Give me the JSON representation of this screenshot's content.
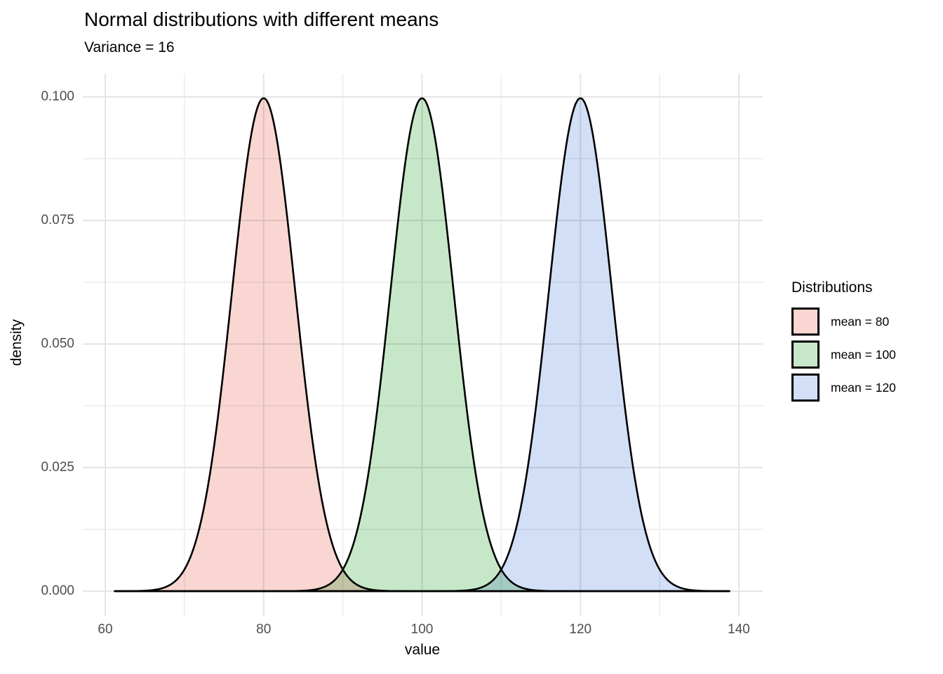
{
  "chart_data": {
    "type": "area",
    "title": "Normal distributions with different means",
    "subtitle": "Variance = 16",
    "xlabel": "value",
    "ylabel": "density",
    "legend_title": "Distributions",
    "legend_position": "right",
    "grid": true,
    "variance": 16,
    "sd": 4,
    "peak_density": 0.0997,
    "curve_x_range": [
      61.2,
      138.8
    ],
    "xlim": [
      57.2,
      143.0
    ],
    "ylim": [
      -0.005,
      0.1047
    ],
    "x_ticks": [
      {
        "value": 60,
        "label": "60"
      },
      {
        "value": 80,
        "label": "80"
      },
      {
        "value": 100,
        "label": "100"
      },
      {
        "value": 120,
        "label": "120"
      },
      {
        "value": 140,
        "label": "140"
      }
    ],
    "x_minor_ticks": [
      70,
      90,
      110,
      130
    ],
    "y_ticks": [
      {
        "value": 0.0,
        "label": "0.000"
      },
      {
        "value": 0.025,
        "label": "0.025"
      },
      {
        "value": 0.05,
        "label": "0.050"
      },
      {
        "value": 0.075,
        "label": "0.075"
      },
      {
        "value": 0.1,
        "label": "0.100"
      }
    ],
    "y_minor_ticks": [
      0.0125,
      0.0375,
      0.0625,
      0.0875
    ],
    "series": [
      {
        "name": "mean = 80",
        "mean": 80,
        "sd": 4,
        "fill": "#FAD6D2"
      },
      {
        "name": "mean = 100",
        "mean": 100,
        "sd": 4,
        "fill": "#C6E8C8"
      },
      {
        "name": "mean = 120",
        "mean": 120,
        "sd": 4,
        "fill": "#D3DFF7"
      }
    ],
    "colors": {
      "curve_stroke": "#000000",
      "grid_major": "#E4E4E4",
      "grid_minor": "#F0F0F0",
      "tick_text": "#4d4d4d",
      "overlap_pink_green": "#C1C2A2",
      "overlap_green_blue": "#A0C8BF",
      "background": "#ffffff"
    }
  }
}
